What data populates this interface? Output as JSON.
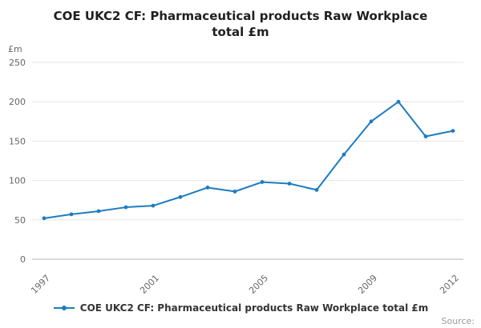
{
  "chart_data": {
    "type": "line",
    "title": "COE UKC2 CF: Pharmaceutical products Raw Workplace total £m",
    "unit_label": "£m",
    "x": [
      1997,
      1998,
      1999,
      2000,
      2001,
      2002,
      2003,
      2004,
      2005,
      2006,
      2007,
      2008,
      2009,
      2010,
      2011,
      2012
    ],
    "values": [
      52,
      57,
      61,
      66,
      68,
      79,
      91,
      86,
      98,
      96,
      88,
      133,
      175,
      200,
      156,
      163
    ],
    "ylim": [
      0,
      250
    ],
    "y_ticks": [
      0,
      50,
      100,
      150,
      200,
      250
    ],
    "x_tick_labels": [
      "1997",
      "2001",
      "2005",
      "2009",
      "2012"
    ],
    "grid": "horizontal",
    "legend": "COE UKC2 CF: Pharmaceutical products Raw Workplace total £m",
    "legend_position": "bottom",
    "line_color": "#1d7cc0",
    "grid_color": "#e6e6e6",
    "axis_color": "#b3b3b3",
    "tick_label_color": "#666666"
  },
  "source_label": "Source:"
}
